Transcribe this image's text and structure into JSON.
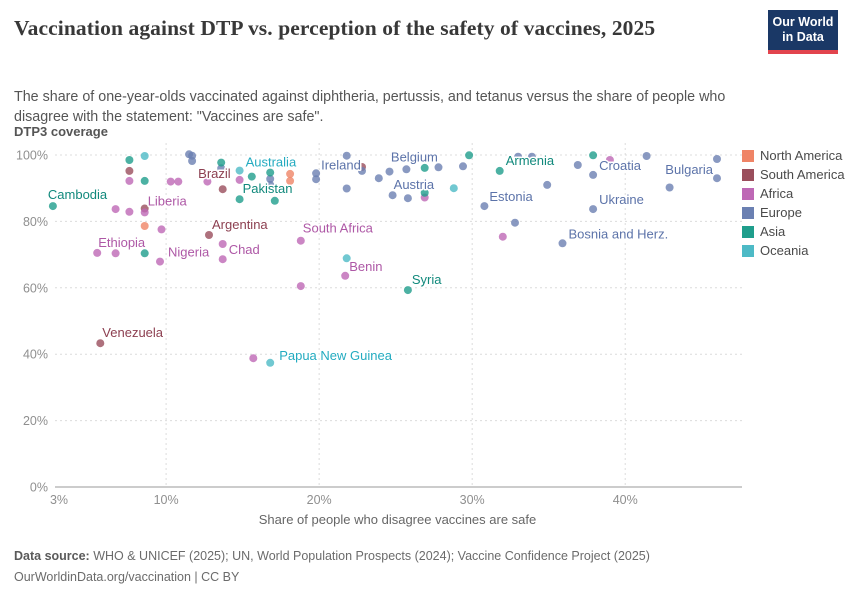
{
  "header": {
    "title": "Vaccination against DTP vs. perception of the safety of vaccines, 2025",
    "subtitle": "The share of one-year-olds vaccinated against diphtheria, pertussis, and tetanus versus the share of people who disagree with the statement: \"Vaccines are safe\"."
  },
  "logo": {
    "line1": "Our World",
    "line2": "in Data",
    "bg_color": "#1A3866",
    "stripe_color": "#E2444D"
  },
  "footer": {
    "source_label": "Data source:",
    "source_text": " WHO & UNICEF (2025); UN, World Population Prospects (2024); Vaccine Confidence Project (2025)",
    "license_line": "OurWorldinData.org/vaccination | CC BY"
  },
  "chart_data": {
    "type": "scatter",
    "xlabel": "Share of people who disagree vaccines are safe",
    "ylabel": "DTP3 coverage",
    "xlim": [
      2.74,
      47.5
    ],
    "ylim": [
      0,
      100
    ],
    "grid": true,
    "legend_position": "right",
    "x_ticks": [
      {
        "value": 3,
        "label": "3%",
        "gridline": false
      },
      {
        "value": 10,
        "label": "10%",
        "gridline": true
      },
      {
        "value": 20,
        "label": "20%",
        "gridline": true
      },
      {
        "value": 30,
        "label": "30%",
        "gridline": true
      },
      {
        "value": 40,
        "label": "40%",
        "gridline": true
      }
    ],
    "y_ticks": [
      {
        "value": 0,
        "label": "0%"
      },
      {
        "value": 20,
        "label": "20%"
      },
      {
        "value": 40,
        "label": "40%"
      },
      {
        "value": 60,
        "label": "60%"
      },
      {
        "value": 80,
        "label": "80%"
      },
      {
        "value": 100,
        "label": "100%"
      }
    ],
    "series": [
      {
        "name": "North America",
        "color": "#EF8466",
        "label_color": "#E0705A",
        "points": [
          {
            "x": 8.6,
            "y": 78.6
          },
          {
            "x": 18.1,
            "y": 94.3
          },
          {
            "x": 18.1,
            "y": 92.2
          }
        ]
      },
      {
        "name": "South America",
        "color": "#9A4E5C",
        "label_color": "#8C3F50",
        "points": [
          {
            "x": 5.7,
            "y": 43.3,
            "label": "Venezuela",
            "anchor": "start",
            "dx": 2,
            "dy": -6
          },
          {
            "x": 7.6,
            "y": 95.2
          },
          {
            "x": 8.6,
            "y": 83.9
          },
          {
            "x": 13.7,
            "y": 89.7,
            "label": "Brazil",
            "anchor": "end",
            "dx": 8,
            "dy": -11
          },
          {
            "x": 12.8,
            "y": 75.9,
            "label": "Argentina",
            "anchor": "start",
            "dx": 3,
            "dy": -6
          },
          {
            "x": 22.8,
            "y": 96.4
          }
        ]
      },
      {
        "name": "Africa",
        "color": "#BE68B5",
        "label_color": "#AE58A6",
        "points": [
          {
            "x": 6.7,
            "y": 83.7
          },
          {
            "x": 7.6,
            "y": 82.9
          },
          {
            "x": 8.6,
            "y": 82.7,
            "label": "Liberia",
            "anchor": "start",
            "dx": 3,
            "dy": -7
          },
          {
            "x": 7.6,
            "y": 92.2
          },
          {
            "x": 5.5,
            "y": 70.5,
            "label": "Ethiopia",
            "anchor": "start",
            "dx": 1,
            "dy": -6
          },
          {
            "x": 6.7,
            "y": 70.4
          },
          {
            "x": 9.6,
            "y": 67.9,
            "label": "Nigeria",
            "anchor": "start",
            "dx": 8,
            "dy": -5
          },
          {
            "x": 9.7,
            "y": 77.6
          },
          {
            "x": 10.3,
            "y": 92
          },
          {
            "x": 10.8,
            "y": 92
          },
          {
            "x": 12.7,
            "y": 92
          },
          {
            "x": 14.8,
            "y": 92.5
          },
          {
            "x": 13.7,
            "y": 73.2
          },
          {
            "x": 13.7,
            "y": 68.6,
            "label": "Chad",
            "anchor": "start",
            "dx": 6,
            "dy": -5
          },
          {
            "x": 18.8,
            "y": 74.2,
            "label": "South Africa",
            "anchor": "start",
            "dx": 2,
            "dy": -8
          },
          {
            "x": 18.8,
            "y": 60.5
          },
          {
            "x": 21.7,
            "y": 63.6,
            "label": "Benin",
            "anchor": "start",
            "dx": 4,
            "dy": -5
          },
          {
            "x": 15.7,
            "y": 38.8
          },
          {
            "x": 26.9,
            "y": 87.2
          },
          {
            "x": 32,
            "y": 75.4
          },
          {
            "x": 39,
            "y": 98.5
          }
        ]
      },
      {
        "name": "Europe",
        "color": "#6B80B2",
        "label_color": "#5C73A9",
        "points": [
          {
            "x": 11.5,
            "y": 100.2
          },
          {
            "x": 11.7,
            "y": 99.8
          },
          {
            "x": 11.7,
            "y": 98.2
          },
          {
            "x": 13.6,
            "y": 96
          },
          {
            "x": 16.8,
            "y": 92.8
          },
          {
            "x": 16.8,
            "y": 91
          },
          {
            "x": 19.8,
            "y": 94.5,
            "label": "Ireland",
            "anchor": "start",
            "dx": 5,
            "dy": -4
          },
          {
            "x": 19.8,
            "y": 92.7
          },
          {
            "x": 21.8,
            "y": 99.8
          },
          {
            "x": 21.8,
            "y": 89.9
          },
          {
            "x": 22.8,
            "y": 95.2
          },
          {
            "x": 23.9,
            "y": 93
          },
          {
            "x": 24.6,
            "y": 95
          },
          {
            "x": 25.7,
            "y": 95.7,
            "label": "Belgium",
            "anchor": "middle",
            "dx": 8,
            "dy": -8
          },
          {
            "x": 27.8,
            "y": 96.3
          },
          {
            "x": 29.4,
            "y": 96.6
          },
          {
            "x": 24.8,
            "y": 87.9
          },
          {
            "x": 25.8,
            "y": 87,
            "label": "Austria",
            "anchor": "middle",
            "dx": 6,
            "dy": -9
          },
          {
            "x": 30.8,
            "y": 84.6,
            "label": "Estonia",
            "anchor": "start",
            "dx": 5,
            "dy": -5
          },
          {
            "x": 32.8,
            "y": 79.6
          },
          {
            "x": 33,
            "y": 99.5
          },
          {
            "x": 33.9,
            "y": 99.5
          },
          {
            "x": 34.9,
            "y": 91
          },
          {
            "x": 36.9,
            "y": 97
          },
          {
            "x": 37.9,
            "y": 94,
            "label": "Croatia",
            "anchor": "start",
            "dx": 6,
            "dy": -5
          },
          {
            "x": 37.9,
            "y": 83.7,
            "label": "Ukraine",
            "anchor": "start",
            "dx": 6,
            "dy": -5
          },
          {
            "x": 35.9,
            "y": 73.4,
            "label": "Bosnia and Herz.",
            "anchor": "start",
            "dx": 6,
            "dy": -5
          },
          {
            "x": 41.4,
            "y": 99.7
          },
          {
            "x": 42.9,
            "y": 90.2
          },
          {
            "x": 46,
            "y": 93,
            "label": "Bulgaria",
            "anchor": "end",
            "dx": -4,
            "dy": -4
          },
          {
            "x": 46,
            "y": 98.8
          }
        ]
      },
      {
        "name": "Asia",
        "color": "#1F9E8C",
        "label_color": "#11897C",
        "points": [
          {
            "x": 2.6,
            "y": 84.6,
            "label": "Cambodia",
            "anchor": "start",
            "dx": -5,
            "dy": -7
          },
          {
            "x": 7.6,
            "y": 98.5
          },
          {
            "x": 8.6,
            "y": 92.2
          },
          {
            "x": 8.6,
            "y": 70.4
          },
          {
            "x": 13.6,
            "y": 97.7
          },
          {
            "x": 14.8,
            "y": 86.7,
            "label": "Pakistan",
            "anchor": "start",
            "dx": 3,
            "dy": -6
          },
          {
            "x": 17.1,
            "y": 86.2
          },
          {
            "x": 15.6,
            "y": 93.5
          },
          {
            "x": 16.8,
            "y": 94.7
          },
          {
            "x": 26.9,
            "y": 88.6
          },
          {
            "x": 26.9,
            "y": 96.1
          },
          {
            "x": 29.8,
            "y": 99.9
          },
          {
            "x": 25.8,
            "y": 59.3,
            "label": "Syria",
            "anchor": "start",
            "dx": 4,
            "dy": -6
          },
          {
            "x": 31.8,
            "y": 95.2,
            "label": "Armenia",
            "anchor": "start",
            "dx": 6,
            "dy": -6
          },
          {
            "x": 37.9,
            "y": 99.9
          }
        ]
      },
      {
        "name": "Oceania",
        "color": "#4DBAC6",
        "label_color": "#23ABC0",
        "points": [
          {
            "x": 8.6,
            "y": 99.7
          },
          {
            "x": 14.8,
            "y": 95.3,
            "label": "Australia",
            "anchor": "start",
            "dx": 6,
            "dy": -4
          },
          {
            "x": 21.8,
            "y": 68.9
          },
          {
            "x": 28.8,
            "y": 90
          },
          {
            "x": 16.8,
            "y": 37.4,
            "label": "Papua New Guinea",
            "anchor": "start",
            "dx": 9,
            "dy": -3
          }
        ]
      }
    ]
  }
}
